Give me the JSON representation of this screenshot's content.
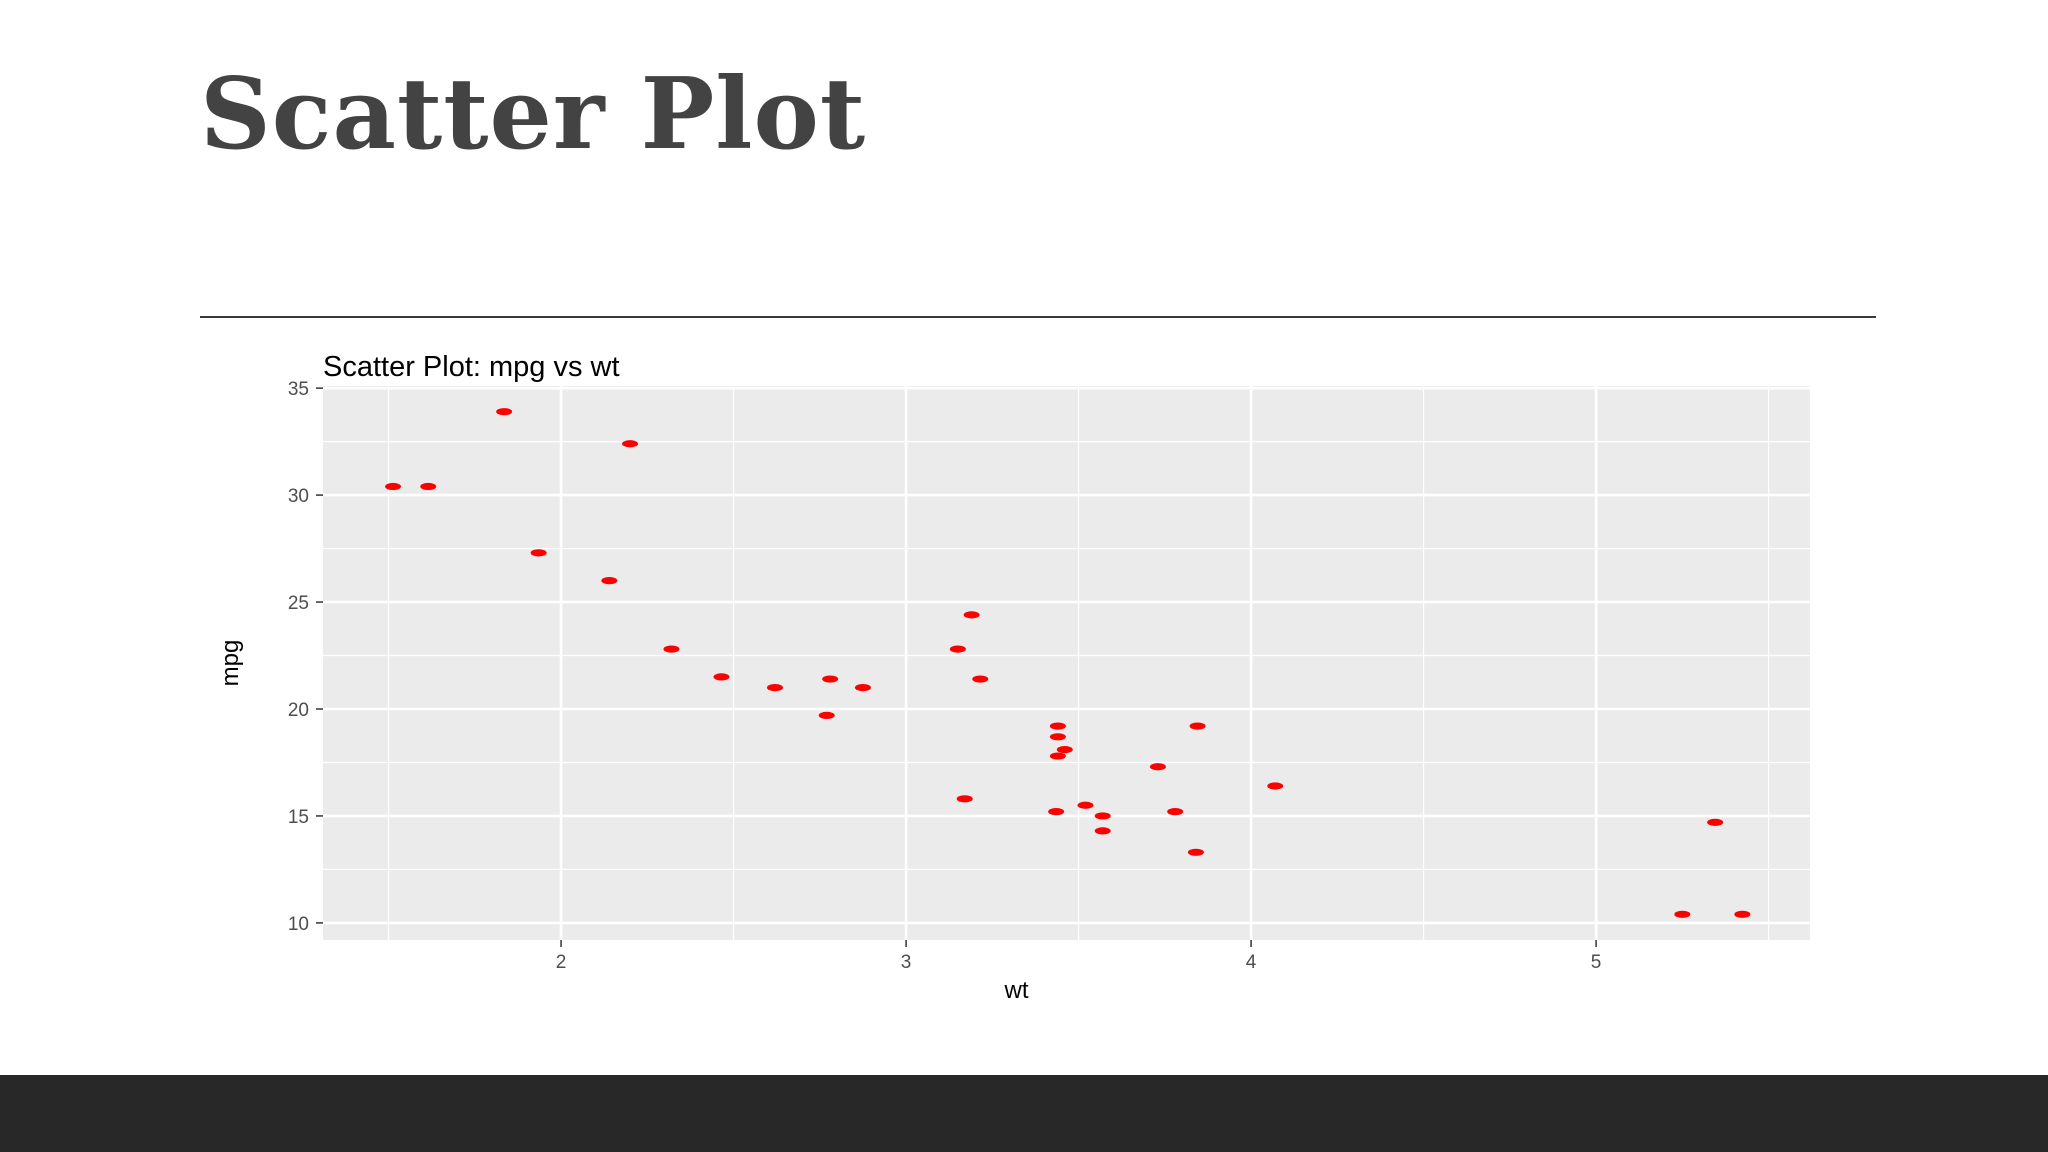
{
  "slide": {
    "title": "Scatter Plot"
  },
  "colors": {
    "title": "#434343",
    "divider": "#3a3a3a",
    "footer": "#282828",
    "panel": "#ebebeb",
    "grid": "#ffffff",
    "point": "#ff0000"
  },
  "chart_data": {
    "type": "scatter",
    "title": "Scatter Plot: mpg vs wt",
    "xlabel": "wt",
    "ylabel": "mpg",
    "xlim": [
      1.31,
      5.62
    ],
    "ylim": [
      9.2,
      35.1
    ],
    "xticks": [
      2,
      3,
      4,
      5
    ],
    "yticks": [
      10,
      15,
      20,
      25,
      30,
      35
    ],
    "grid": true,
    "series": [
      {
        "points": [
          {
            "x": 2.62,
            "y": 21.0
          },
          {
            "x": 2.875,
            "y": 21.0
          },
          {
            "x": 2.32,
            "y": 22.8
          },
          {
            "x": 3.215,
            "y": 21.4
          },
          {
            "x": 3.44,
            "y": 18.7
          },
          {
            "x": 3.46,
            "y": 18.1
          },
          {
            "x": 3.57,
            "y": 14.3
          },
          {
            "x": 3.19,
            "y": 24.4
          },
          {
            "x": 3.15,
            "y": 22.8
          },
          {
            "x": 3.44,
            "y": 19.2
          },
          {
            "x": 3.44,
            "y": 17.8
          },
          {
            "x": 4.07,
            "y": 16.4
          },
          {
            "x": 3.73,
            "y": 17.3
          },
          {
            "x": 3.78,
            "y": 15.2
          },
          {
            "x": 5.25,
            "y": 10.4
          },
          {
            "x": 5.424,
            "y": 10.4
          },
          {
            "x": 5.345,
            "y": 14.7
          },
          {
            "x": 2.2,
            "y": 32.4
          },
          {
            "x": 1.615,
            "y": 30.4
          },
          {
            "x": 1.835,
            "y": 33.9
          },
          {
            "x": 2.465,
            "y": 21.5
          },
          {
            "x": 3.52,
            "y": 15.5
          },
          {
            "x": 3.435,
            "y": 15.2
          },
          {
            "x": 3.84,
            "y": 13.3
          },
          {
            "x": 3.845,
            "y": 19.2
          },
          {
            "x": 1.935,
            "y": 27.3
          },
          {
            "x": 2.14,
            "y": 26.0
          },
          {
            "x": 1.513,
            "y": 30.4
          },
          {
            "x": 3.17,
            "y": 15.8
          },
          {
            "x": 2.77,
            "y": 19.7
          },
          {
            "x": 3.57,
            "y": 15.0
          },
          {
            "x": 2.78,
            "y": 21.4
          }
        ]
      }
    ]
  }
}
